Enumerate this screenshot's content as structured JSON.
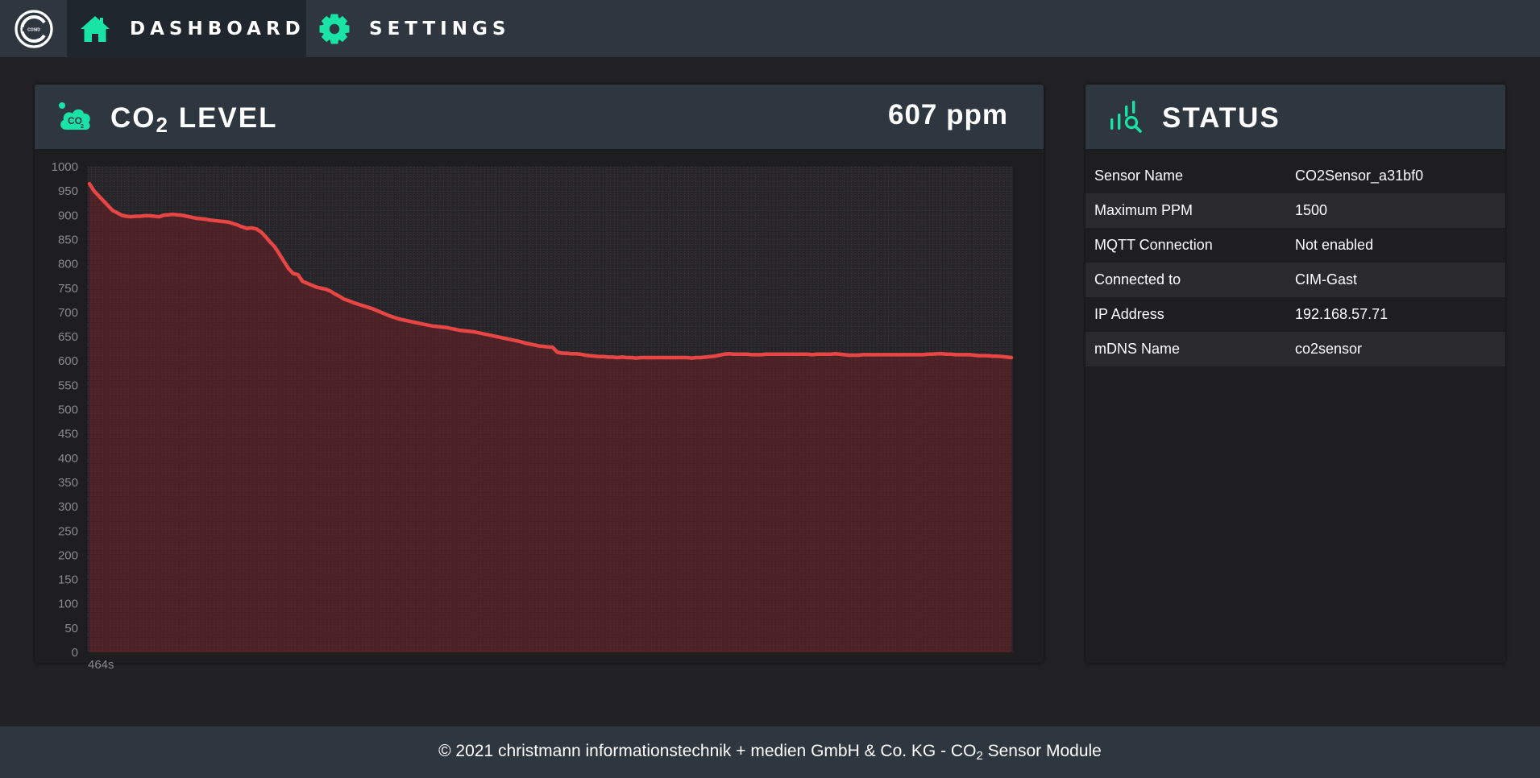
{
  "app": {
    "logo_icon": "cosid-logo-icon",
    "accent_color": "#19e3a5"
  },
  "nav": {
    "items": [
      {
        "label": "DASHBOARD",
        "icon": "home-icon",
        "active": true
      },
      {
        "label": "SETTINGS",
        "icon": "gear-icon",
        "active": false
      }
    ]
  },
  "co2_card": {
    "title_prefix": "CO",
    "title_sub": "2",
    "title_suffix": "LEVEL",
    "icon": "co2-cloud-icon",
    "current_value": "607 ppm"
  },
  "chart_data": {
    "type": "area",
    "x_label_first": "464s",
    "ylim": [
      0,
      1000
    ],
    "yticks": [
      0,
      50,
      100,
      150,
      200,
      250,
      300,
      350,
      400,
      450,
      500,
      550,
      600,
      650,
      700,
      750,
      800,
      850,
      900,
      950,
      1000
    ],
    "grid": true,
    "line_color": "#e84545",
    "fill_color": "#5a2226",
    "series": [
      {
        "values": [
          965,
          950,
          940,
          930,
          920,
          910,
          905,
          900,
          898,
          897,
          898,
          898,
          899,
          899,
          898,
          897,
          900,
          901,
          902,
          901,
          900,
          898,
          896,
          894,
          893,
          892,
          890,
          889,
          888,
          887,
          886,
          883,
          880,
          876,
          873,
          874,
          872,
          866,
          856,
          845,
          835,
          820,
          805,
          790,
          780,
          778,
          764,
          760,
          756,
          752,
          750,
          748,
          744,
          738,
          733,
          727,
          724,
          720,
          717,
          714,
          711,
          708,
          704,
          700,
          696,
          692,
          689,
          686,
          684,
          682,
          680,
          678,
          676,
          674,
          672,
          671,
          670,
          669,
          667,
          665,
          663,
          662,
          661,
          660,
          658,
          656,
          654,
          652,
          650,
          648,
          646,
          644,
          642,
          640,
          637,
          635,
          633,
          631,
          630,
          629,
          628,
          618,
          616,
          616,
          615,
          615,
          614,
          612,
          611,
          610,
          609,
          609,
          608,
          608,
          607,
          608,
          607,
          607,
          606,
          607,
          607,
          607,
          607,
          607,
          607,
          607,
          607,
          607,
          607,
          607,
          606,
          607,
          607,
          608,
          609,
          610,
          612,
          614,
          615,
          614,
          614,
          614,
          614,
          613,
          613,
          613,
          614,
          614,
          614,
          614,
          614,
          614,
          614,
          614,
          614,
          614,
          613,
          614,
          614,
          614,
          614,
          615,
          614,
          613,
          612,
          612,
          612,
          613,
          613,
          613,
          613,
          613,
          613,
          613,
          613,
          613,
          613,
          613,
          613,
          613,
          613,
          614,
          614,
          615,
          615,
          614,
          614,
          613,
          613,
          613,
          613,
          612,
          611,
          611,
          611,
          610,
          610,
          609,
          608,
          607
        ]
      }
    ]
  },
  "status_card": {
    "title": "STATUS",
    "icon": "status-chart-search-icon",
    "rows": [
      {
        "key": "Sensor Name",
        "value": "CO2Sensor_a31bf0"
      },
      {
        "key": "Maximum PPM",
        "value": "1500"
      },
      {
        "key": "MQTT Connection",
        "value": "Not enabled"
      },
      {
        "key": "Connected to",
        "value": "CIM-Gast"
      },
      {
        "key": "IP Address",
        "value": "192.168.57.71"
      },
      {
        "key": "mDNS Name",
        "value": "co2sensor"
      }
    ]
  },
  "footer": {
    "text_before": "© 2021 christmann informationstechnik + medien GmbH & Co. KG - CO",
    "text_sub": "2",
    "text_after": " Sensor Module"
  }
}
